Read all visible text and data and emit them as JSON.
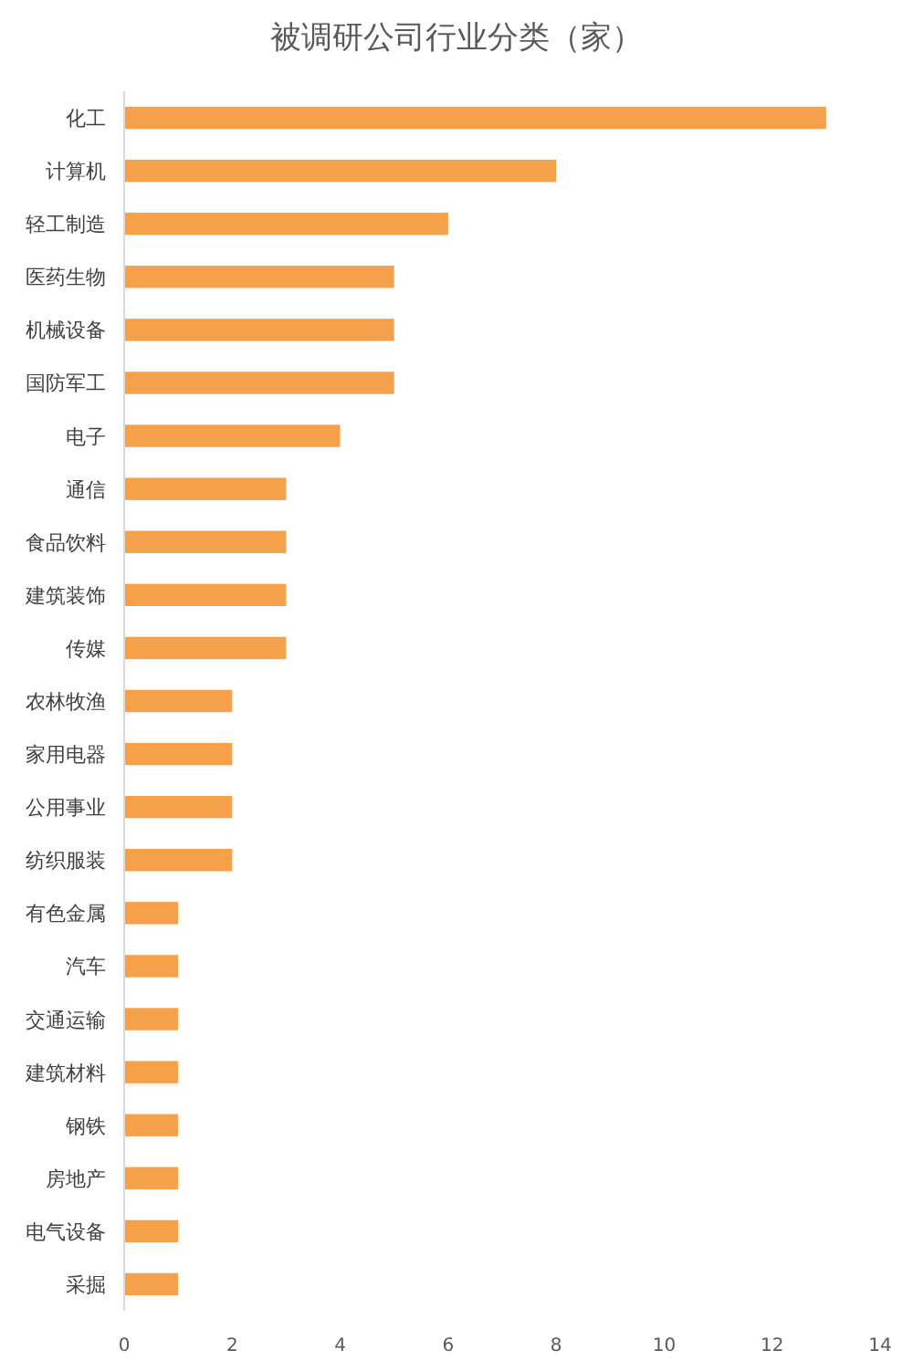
{
  "chart_data": {
    "type": "bar",
    "orientation": "horizontal",
    "title": "被调研公司行业分类（家）",
    "categories": [
      "化工",
      "计算机",
      "轻工制造",
      "医药生物",
      "机械设备",
      "国防军工",
      "电子",
      "通信",
      "食品饮料",
      "建筑装饰",
      "传媒",
      "农林牧渔",
      "家用电器",
      "公用事业",
      "纺织服装",
      "有色金属",
      "汽车",
      "交通运输",
      "建筑材料",
      "钢铁",
      "房地产",
      "电气设备",
      "采掘"
    ],
    "values": [
      13,
      8,
      6,
      5,
      5,
      5,
      4,
      3,
      3,
      3,
      3,
      2,
      2,
      2,
      2,
      1,
      1,
      1,
      1,
      1,
      1,
      1,
      1
    ],
    "color": "#f5a04b",
    "xlim": [
      0,
      14
    ],
    "xticks": [
      0,
      2,
      4,
      6,
      8,
      10,
      12,
      14
    ],
    "grid": false
  }
}
